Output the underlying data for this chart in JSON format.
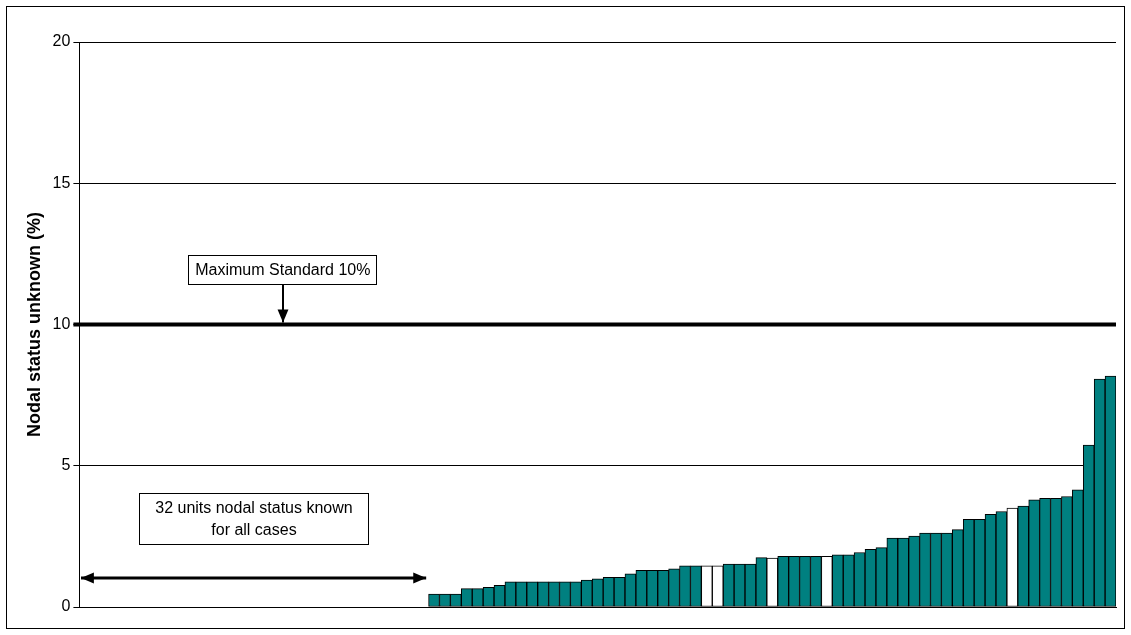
{
  "chart_data": {
    "type": "bar",
    "ylabel": "Nodal status unknown (%)",
    "categories": [
      null,
      null,
      null,
      null,
      null,
      null,
      null,
      null,
      null,
      null,
      null,
      null,
      null,
      null,
      null,
      null,
      null,
      null,
      null,
      null,
      null,
      null,
      null,
      null,
      null,
      null,
      null,
      null,
      null,
      null,
      null,
      null,
      null,
      null,
      null,
      null,
      null,
      null,
      null,
      null,
      null,
      null,
      null,
      null,
      null,
      null,
      null,
      null,
      null,
      null,
      null,
      null,
      null,
      null,
      null,
      null,
      null,
      null,
      null,
      null,
      null,
      null,
      null,
      null,
      null,
      null,
      null,
      null,
      null,
      null,
      null,
      null,
      null,
      null,
      null,
      null,
      null,
      null,
      null,
      null,
      null,
      null,
      null,
      null,
      null,
      null,
      null,
      null,
      null,
      null,
      null,
      null,
      null,
      null,
      null
    ],
    "values": [
      0,
      0,
      0,
      0,
      0,
      0,
      0,
      0,
      0,
      0,
      0,
      0,
      0,
      0,
      0,
      0,
      0,
      0,
      0,
      0,
      0,
      0,
      0,
      0,
      0,
      0,
      0,
      0,
      0,
      0,
      0,
      0,
      0.46,
      0.46,
      0.46,
      0.65,
      0.65,
      0.7,
      0.77,
      0.89,
      0.89,
      0.89,
      0.89,
      0.89,
      0.89,
      0.89,
      0.95,
      1.0,
      1.05,
      1.05,
      1.17,
      1.3,
      1.3,
      1.3,
      1.35,
      1.46,
      1.46,
      1.46,
      1.46,
      1.52,
      1.52,
      1.52,
      1.75,
      1.73,
      1.79,
      1.79,
      1.79,
      1.79,
      1.79,
      1.85,
      1.85,
      1.93,
      2.04,
      2.1,
      2.44,
      2.44,
      2.51,
      2.62,
      2.62,
      2.62,
      2.74,
      3.1,
      3.1,
      3.28,
      3.38,
      3.5,
      3.57,
      3.79,
      3.85,
      3.85,
      3.91,
      4.15,
      5.73,
      8.07,
      8.17
    ],
    "colors": [
      "#008080",
      "#008080",
      "#008080",
      "#008080",
      "#008080",
      "#008080",
      "#008080",
      "#008080",
      "#008080",
      "#008080",
      "#008080",
      "#008080",
      "#008080",
      "#008080",
      "#008080",
      "#008080",
      "#008080",
      "#008080",
      "#008080",
      "#008080",
      "#008080",
      "#008080",
      "#008080",
      "#008080",
      "#008080",
      "#008080",
      "#008080",
      "#008080",
      "#008080",
      "#008080",
      "#008080",
      "#008080",
      "#008080",
      "#008080",
      "#008080",
      "#008080",
      "#008080",
      "#008080",
      "#008080",
      "#008080",
      "#008080",
      "#008080",
      "#008080",
      "#008080",
      "#008080",
      "#008080",
      "#008080",
      "#008080",
      "#008080",
      "#008080",
      "#008080",
      "#008080",
      "#008080",
      "#008080",
      "#008080",
      "#008080",
      "#008080",
      "#ffffff",
      "#ffffff",
      "#008080",
      "#008080",
      "#008080",
      "#008080",
      "#ffffff",
      "#008080",
      "#008080",
      "#008080",
      "#008080",
      "#ffffff",
      "#008080",
      "#008080",
      "#008080",
      "#008080",
      "#008080",
      "#008080",
      "#008080",
      "#008080",
      "#008080",
      "#008080",
      "#008080",
      "#008080",
      "#008080",
      "#008080",
      "#008080",
      "#008080",
      "#ffffff",
      "#008080",
      "#008080",
      "#008080",
      "#008080",
      "#008080",
      "#008080",
      "#008080",
      "#008080",
      "#008080"
    ],
    "ylim": [
      0,
      20
    ],
    "yticks": [
      0,
      5,
      10,
      15,
      20
    ],
    "grid": "y",
    "tick_labels": "y",
    "legend": false,
    "ref_lines": [
      {
        "axis": "y",
        "value": 10,
        "label": "Maximum Standard 10%",
        "color": "#000000"
      }
    ],
    "annotations": [
      "32 units nodal status known for all cases"
    ]
  }
}
